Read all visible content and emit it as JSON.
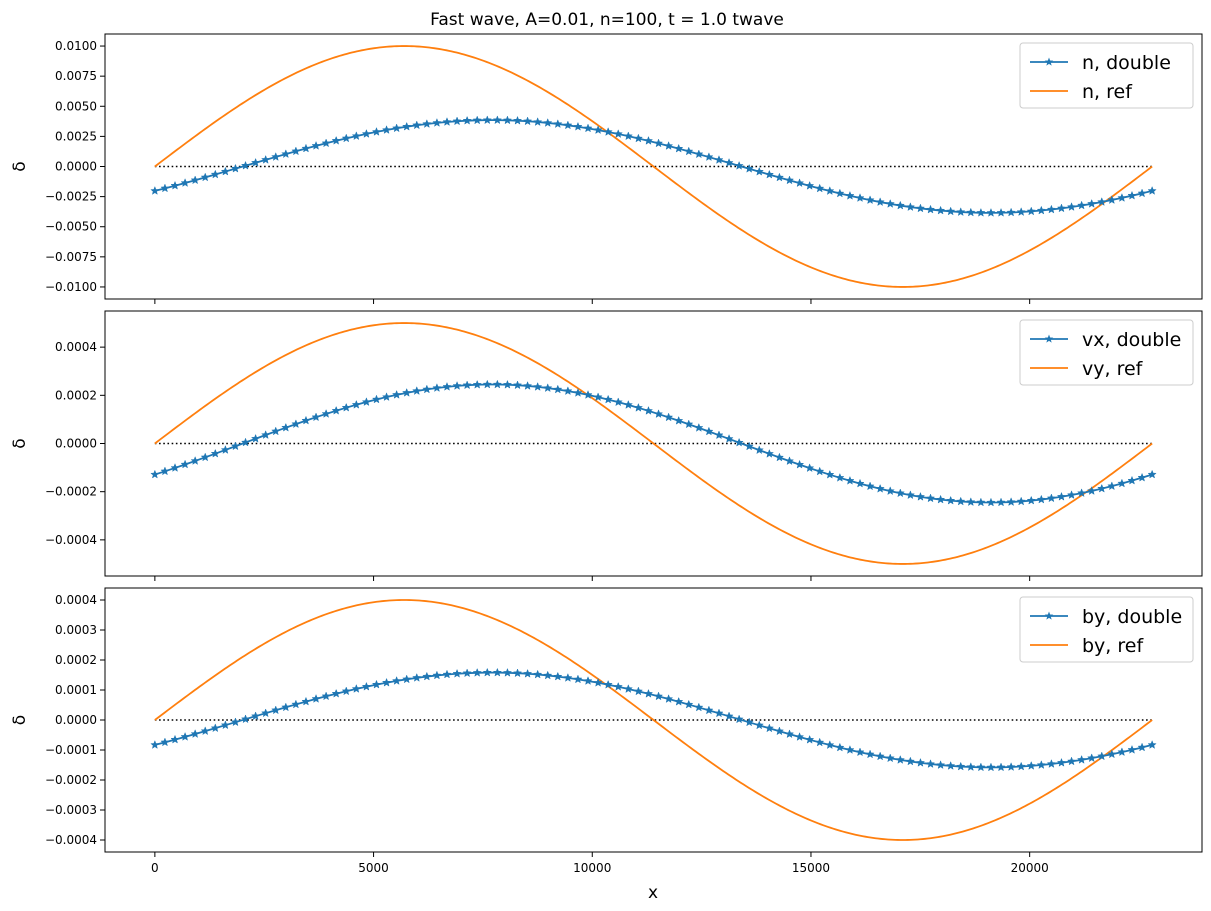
{
  "figure": {
    "title": "Fast wave, A=0.01, n=100, t = 1.0 twave",
    "xlabel": "x"
  },
  "colors": {
    "double": "#1f77b4",
    "ref": "#ff7f0e",
    "zero_line": "#000000"
  },
  "chart_data": [
    {
      "type": "line",
      "ylabel": "δ",
      "xlim": [
        -1140,
        23940
      ],
      "ylim": [
        -0.011,
        0.011
      ],
      "xticks": [
        0,
        5000,
        10000,
        15000,
        20000
      ],
      "xtick_labels": [
        "",
        "",
        "",
        "",
        ""
      ],
      "yticks": [
        -0.01,
        -0.0075,
        -0.005,
        -0.0025,
        0,
        0.0025,
        0.005,
        0.0075,
        0.01
      ],
      "ytick_labels": [
        "−0.0100",
        "−0.0075",
        "−0.0050",
        "−0.0025",
        "0.0000",
        "0.0025",
        "0.0050",
        "0.0075",
        "0.0100"
      ],
      "legend_position": "top-right",
      "x_range": [
        0,
        22800
      ],
      "series": [
        {
          "name": "n, double",
          "marker": "star",
          "amplitude": 0.00385,
          "phase_shift_x": 2010,
          "num_points": 100
        },
        {
          "name": "n, ref",
          "marker": "none",
          "amplitude": 0.01,
          "phase_shift_x": 0,
          "num_points": 400
        }
      ],
      "zero_line": true
    },
    {
      "type": "line",
      "ylabel": "δ",
      "xlim": [
        -1140,
        23940
      ],
      "ylim": [
        -0.00055,
        0.00055
      ],
      "xticks": [
        0,
        5000,
        10000,
        15000,
        20000
      ],
      "xtick_labels": [
        "",
        "",
        "",
        "",
        ""
      ],
      "yticks": [
        -0.0004,
        -0.0002,
        0,
        0.0002,
        0.0004
      ],
      "ytick_labels": [
        "−0.0004",
        "−0.0002",
        "0.0000",
        "0.0002",
        "0.0004"
      ],
      "legend_position": "top-right",
      "x_range": [
        0,
        22800
      ],
      "series": [
        {
          "name": "vx, double",
          "marker": "star",
          "amplitude": 0.000245,
          "phase_shift_x": 2010,
          "num_points": 100
        },
        {
          "name": "vy, ref",
          "marker": "none",
          "amplitude": 0.0005,
          "phase_shift_x": 0,
          "num_points": 400
        }
      ],
      "zero_line": true
    },
    {
      "type": "line",
      "ylabel": "δ",
      "xlabel": "x",
      "xlim": [
        -1140,
        23940
      ],
      "ylim": [
        -0.00044,
        0.00044
      ],
      "xticks": [
        0,
        5000,
        10000,
        15000,
        20000
      ],
      "xtick_labels": [
        "0",
        "5000",
        "10000",
        "15000",
        "20000"
      ],
      "yticks": [
        -0.0004,
        -0.0003,
        -0.0002,
        -0.0001,
        0,
        0.0001,
        0.0002,
        0.0003,
        0.0004
      ],
      "ytick_labels": [
        "−0.0004",
        "−0.0003",
        "−0.0002",
        "−0.0001",
        "0.0000",
        "0.0001",
        "0.0002",
        "0.0003",
        "0.0004"
      ],
      "legend_position": "top-right",
      "x_range": [
        0,
        22800
      ],
      "series": [
        {
          "name": "by, double",
          "marker": "star",
          "amplitude": 0.000158,
          "phase_shift_x": 2010,
          "num_points": 100
        },
        {
          "name": "by, ref",
          "marker": "none",
          "amplitude": 0.0004,
          "phase_shift_x": 0,
          "num_points": 400
        }
      ],
      "zero_line": true
    }
  ]
}
